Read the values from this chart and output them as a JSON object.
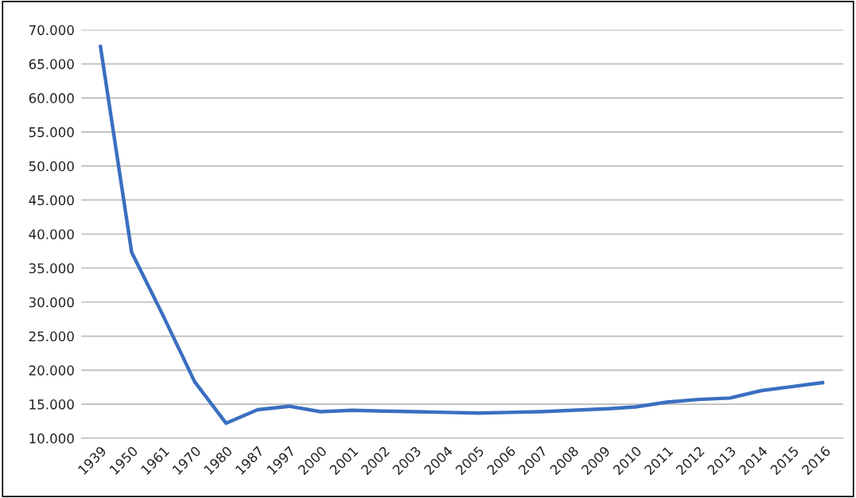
{
  "chart_data": {
    "type": "line",
    "categories": [
      "1939",
      "1950",
      "1961",
      "1970",
      "1980",
      "1987",
      "1997",
      "2000",
      "2001",
      "2002",
      "2003",
      "2004",
      "2005",
      "2006",
      "2007",
      "2008",
      "2009",
      "2010",
      "2011",
      "2012",
      "2013",
      "2014",
      "2015",
      "2016"
    ],
    "series": [
      {
        "color": "#3a6fc0",
        "values": [
          67800,
          37300,
          28000,
          18300,
          12200,
          14200,
          14700,
          13900,
          14100,
          14000,
          13900,
          13800,
          13700,
          13800,
          13900,
          14100,
          14300,
          14600,
          15300,
          15700,
          15900,
          17000,
          17600,
          18200
        ]
      }
    ],
    "ylim": [
      10000,
      70000
    ],
    "yticks": [
      {
        "value": 10000,
        "label": "10.000"
      },
      {
        "value": 15000,
        "label": "15.000"
      },
      {
        "value": 20000,
        "label": "20.000"
      },
      {
        "value": 25000,
        "label": "25.000"
      },
      {
        "value": 30000,
        "label": "30.000"
      },
      {
        "value": 35000,
        "label": "35.000"
      },
      {
        "value": 40000,
        "label": "40.000"
      },
      {
        "value": 45000,
        "label": "45.000"
      },
      {
        "value": 50000,
        "label": "50.000"
      },
      {
        "value": 55000,
        "label": "55.000"
      },
      {
        "value": 60000,
        "label": "60.000"
      },
      {
        "value": 65000,
        "label": "65.000"
      },
      {
        "value": 70000,
        "label": "70.000"
      }
    ],
    "grid": "y",
    "line_style": "solid",
    "marker": "none"
  }
}
